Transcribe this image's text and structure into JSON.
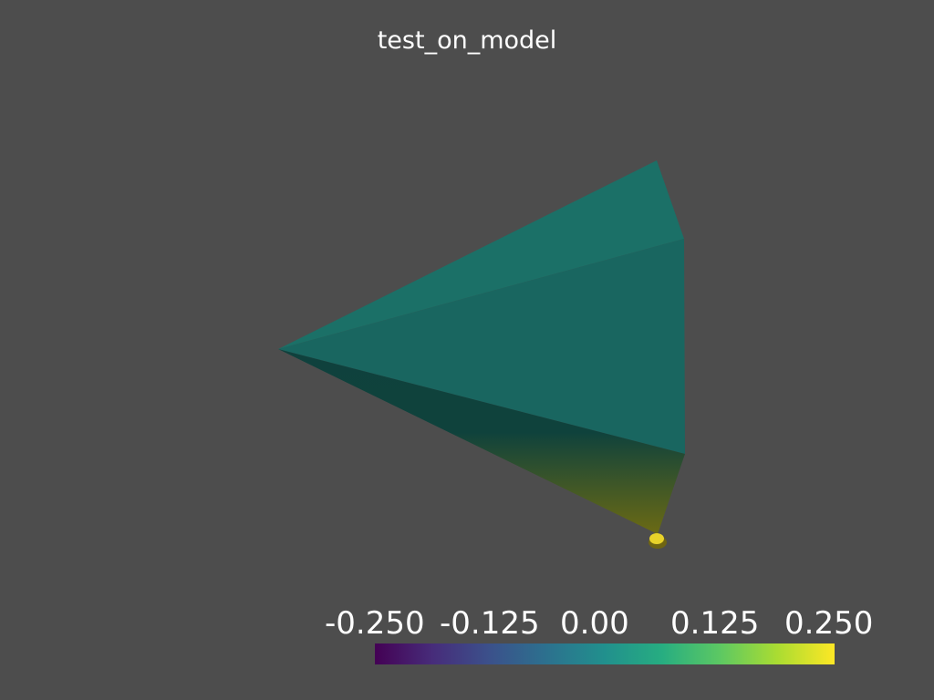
{
  "title": "test_on_model",
  "colorbar": {
    "colormap": "viridis",
    "range": [
      -0.25,
      0.25
    ],
    "tick_labels": [
      "-0.250",
      "-0.125",
      "0.00",
      "0.125",
      "0.250"
    ],
    "stops": [
      "#440154",
      "#472c7a",
      "#3b518b",
      "#2c718e",
      "#21908d",
      "#27ad81",
      "#5cc863",
      "#aadc32",
      "#fde725"
    ]
  },
  "colors": {
    "background": "#4d4d4d",
    "face_top": "#1b7067",
    "face_middle": "#196660",
    "face_bottom_dark": "#0f413d",
    "face_bottom_light": "#6b6a14",
    "marker": "#e8d22a"
  }
}
